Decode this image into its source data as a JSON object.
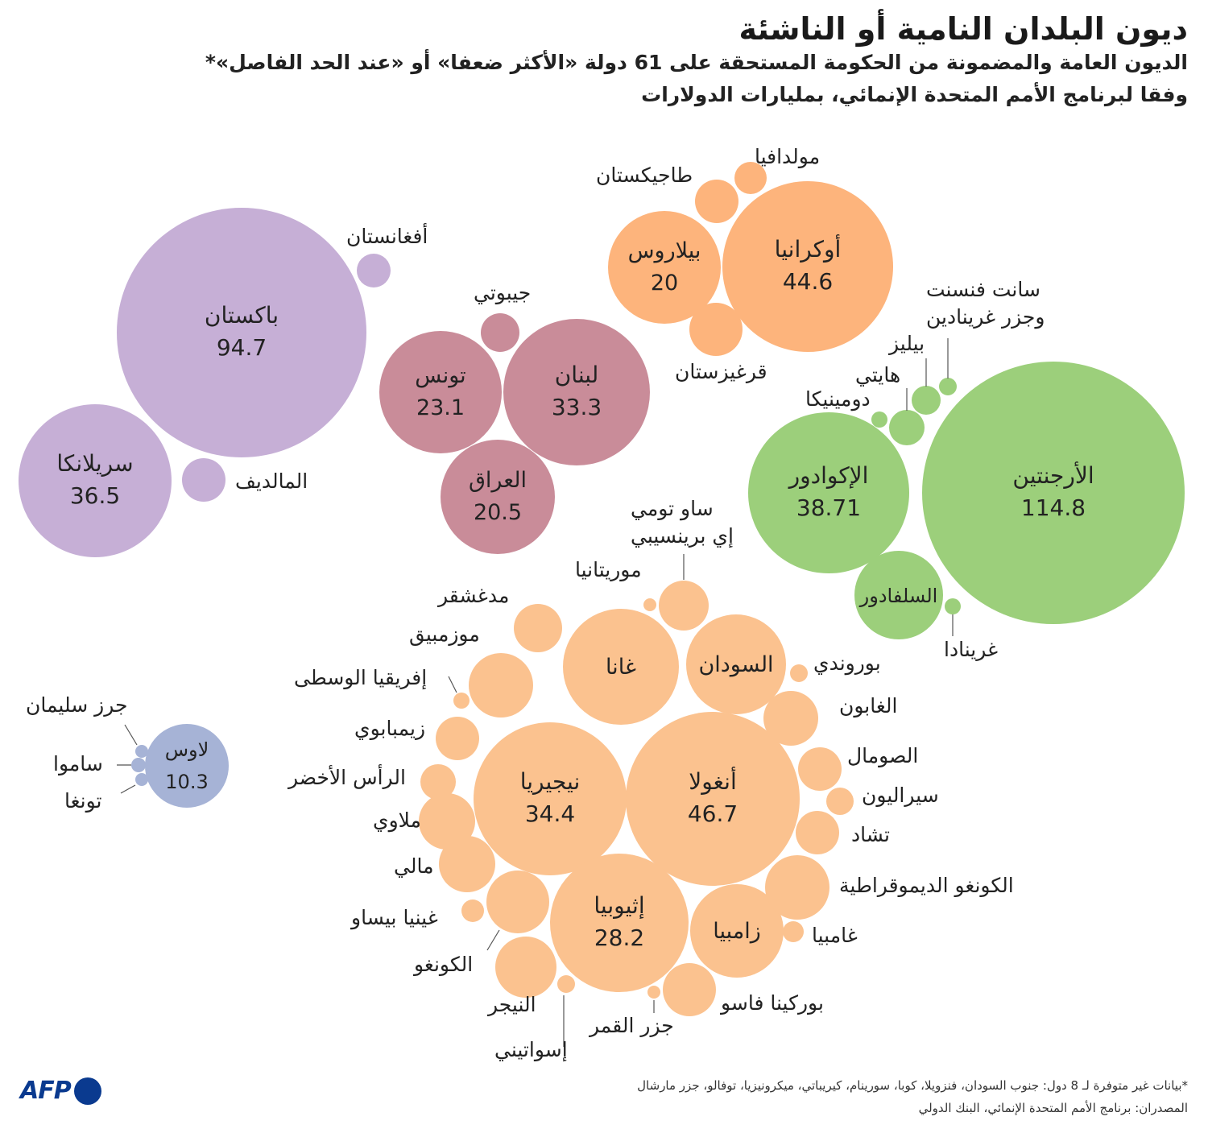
{
  "title": "ديون البلدان النامية أو الناشئة",
  "subtitle_line1": "الديون العامة والمضمونة من الحكومة المستحقة على 61 دولة «الأكثر ضعفا» أو «عند الحد الفاصل»*",
  "subtitle_line2": "وفقا لبرنامج الأمم المتحدة الإنمائي، بمليارات الدولارات",
  "footnote": "*بيانات غير متوفرة لـ 8 دول: جنوب السودان، فنزويلا، كوبا، سورينام، كيريباتي، ميكرونيزيا، توفالو، جزر مارشال",
  "sources": "المصدران: برنامج الأمم المتحدة الإنمائي، البنك الدولي",
  "logo": "AFP",
  "colors": {
    "purple": "#c6afd6",
    "rose": "#c98c99",
    "orange": "#fdb47c",
    "light_orange": "#fbc28f",
    "green": "#9ccf7b",
    "blue": "#a6b3d6"
  },
  "chart_data": {
    "type": "bubble",
    "unit": "مليارات الدولارات",
    "groups": [
      {
        "id": "south-asia",
        "color": "purple",
        "countries": [
          {
            "name": "باكستان",
            "value": 94.7,
            "value_label": "94.7"
          },
          {
            "name": "سريلانكا",
            "value": 36.5,
            "value_label": "36.5"
          },
          {
            "name": "أفغانستان",
            "value": null,
            "value_label": ""
          },
          {
            "name": "المالديف",
            "value": null,
            "value_label": ""
          }
        ]
      },
      {
        "id": "middle-east",
        "color": "rose",
        "countries": [
          {
            "name": "لبنان",
            "value": 33.3,
            "value_label": "33.3"
          },
          {
            "name": "تونس",
            "value": 23.1,
            "value_label": "23.1"
          },
          {
            "name": "العراق",
            "value": 20.5,
            "value_label": "20.5"
          },
          {
            "name": "جيبوتي",
            "value": null,
            "value_label": ""
          }
        ]
      },
      {
        "id": "europe-central-asia",
        "color": "orange",
        "countries": [
          {
            "name": "أوكرانيا",
            "value": 44.6,
            "value_label": "44.6"
          },
          {
            "name": "بيلاروس",
            "value": 20,
            "value_label": "20"
          },
          {
            "name": "مولدافيا",
            "value": null,
            "value_label": ""
          },
          {
            "name": "طاجيكستان",
            "value": null,
            "value_label": ""
          },
          {
            "name": "قرغيزستان",
            "value": null,
            "value_label": ""
          }
        ]
      },
      {
        "id": "latin-america",
        "color": "green",
        "countries": [
          {
            "name": "الأرجنتين",
            "value": 114.8,
            "value_label": "114.8"
          },
          {
            "name": "الإكوادور",
            "value": 38.71,
            "value_label": "38.71"
          },
          {
            "name": "السلفادور",
            "value": null,
            "value_label": ""
          },
          {
            "name": "سانت فنسنت\nوجزر غرينادين",
            "value": null,
            "value_label": ""
          },
          {
            "name": "بيليز",
            "value": null,
            "value_label": ""
          },
          {
            "name": "هايتي",
            "value": null,
            "value_label": ""
          },
          {
            "name": "دومينيكا",
            "value": null,
            "value_label": ""
          },
          {
            "name": "غرينادا",
            "value": null,
            "value_label": ""
          }
        ]
      },
      {
        "id": "africa",
        "color": "light_orange",
        "countries": [
          {
            "name": "أنغولا",
            "value": 46.7,
            "value_label": "46.7"
          },
          {
            "name": "نيجيريا",
            "value": 34.4,
            "value_label": "34.4"
          },
          {
            "name": "إثيوبيا",
            "value": 28.2,
            "value_label": "28.2"
          },
          {
            "name": "غانا",
            "value": null,
            "value_label": ""
          },
          {
            "name": "السودان",
            "value": null,
            "value_label": ""
          },
          {
            "name": "زامبيا",
            "value": null,
            "value_label": ""
          },
          {
            "name": "ساو تومي\nإي برينسيبي",
            "value": null,
            "value_label": ""
          },
          {
            "name": "موريتانيا",
            "value": null,
            "value_label": ""
          },
          {
            "name": "مدغشقر",
            "value": null,
            "value_label": ""
          },
          {
            "name": "موزمبيق",
            "value": null,
            "value_label": ""
          },
          {
            "name": "إفريقيا الوسطى",
            "value": null,
            "value_label": ""
          },
          {
            "name": "زيمبابوي",
            "value": null,
            "value_label": ""
          },
          {
            "name": "الرأس الأخضر",
            "value": null,
            "value_label": ""
          },
          {
            "name": "ملاوي",
            "value": null,
            "value_label": ""
          },
          {
            "name": "مالي",
            "value": null,
            "value_label": ""
          },
          {
            "name": "غينيا بيساو",
            "value": null,
            "value_label": ""
          },
          {
            "name": "الكونغو",
            "value": null,
            "value_label": ""
          },
          {
            "name": "النيجر",
            "value": null,
            "value_label": ""
          },
          {
            "name": "إسواتيني",
            "value": null,
            "value_label": ""
          },
          {
            "name": "جزر القمر",
            "value": null,
            "value_label": ""
          },
          {
            "name": "بوركينا فاسو",
            "value": null,
            "value_label": ""
          },
          {
            "name": "غامبيا",
            "value": null,
            "value_label": ""
          },
          {
            "name": "الكونغو الديموقراطية",
            "value": null,
            "value_label": ""
          },
          {
            "name": "تشاد",
            "value": null,
            "value_label": ""
          },
          {
            "name": "سيراليون",
            "value": null,
            "value_label": ""
          },
          {
            "name": "الصومال",
            "value": null,
            "value_label": ""
          },
          {
            "name": "الغابون",
            "value": null,
            "value_label": ""
          },
          {
            "name": "بوروندي",
            "value": null,
            "value_label": ""
          }
        ]
      },
      {
        "id": "pacific",
        "color": "blue",
        "countries": [
          {
            "name": "لاوس",
            "value": 10.3,
            "value_label": "10.3"
          },
          {
            "name": "جرز سليمان",
            "value": null,
            "value_label": ""
          },
          {
            "name": "ساموا",
            "value": null,
            "value_label": ""
          },
          {
            "name": "تونغا",
            "value": null,
            "value_label": ""
          }
        ]
      }
    ]
  }
}
